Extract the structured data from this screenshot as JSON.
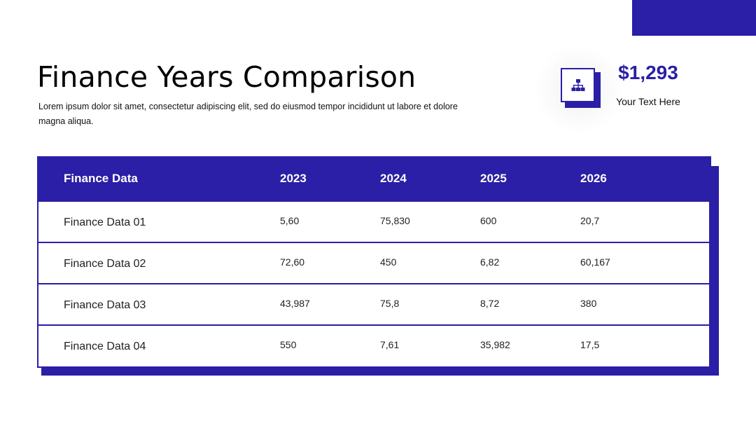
{
  "header": {
    "title": "Finance Years Comparison",
    "subtitle": "Lorem ipsum dolor sit amet, consectetur adipiscing elit, sed do eiusmod tempor incididunt ut labore et dolore magna aliqua."
  },
  "stat": {
    "icon": "org-chart-icon",
    "value": "$1,293",
    "label": "Your Text Here"
  },
  "table": {
    "headers": [
      "Finance Data",
      "2023",
      "2024",
      "2025",
      "2026"
    ],
    "rows": [
      [
        "Finance Data 01",
        "5,60",
        "75,830",
        "600",
        "20,7"
      ],
      [
        "Finance Data 02",
        "72,60",
        "450",
        "6,82",
        "60,167"
      ],
      [
        "Finance Data 03",
        "43,987",
        "75,8",
        "8,72",
        "380"
      ],
      [
        "Finance Data 04",
        "550",
        "7,61",
        "35,982",
        "17,5"
      ]
    ]
  },
  "colors": {
    "accent": "#2a1fa6",
    "background": "#ffffff",
    "text": "#111111"
  }
}
